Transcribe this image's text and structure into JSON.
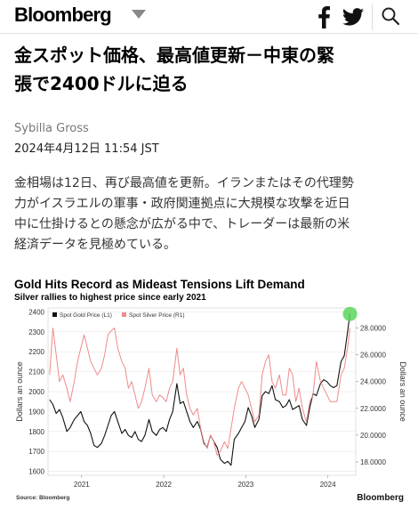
{
  "header": {
    "logo": "Bloomberg",
    "icons": [
      "facebook-icon",
      "twitter-icon",
      "search-icon"
    ]
  },
  "article": {
    "headline_line1": "金スポット価格、最高値更新－中東の緊",
    "headline_line2": "張で2400ドルに迫る",
    "author": "Sybilla Gross",
    "date": "2024年4月12日 11:54 JST",
    "paragraph_line1": "金相場は12日、再び最高値を更新。イランまたはその代理勢",
    "paragraph_line2": "力がイスラエルの軍事・政府関連拠点に大規模な攻撃を近日",
    "paragraph_line3": "中に仕掛けるとの懸念が広がる中で、トレーダーは最新の米",
    "paragraph_line4": "経済データを見極めている。"
  },
  "chart_data": {
    "type": "line",
    "title": "Gold Hits Record as Mideast Tensions Lift Demand",
    "subtitle": "Silver rallies to highest price since early 2021",
    "source": "Source: Bloomberg",
    "brand": "Bloomberg",
    "legend_placement": "top-left",
    "ylabel_left": "Dollars an ounce",
    "ylabel_right": "Dollars an ounce",
    "y_left_ticks": [
      "2400",
      "2300",
      "2200",
      "2100",
      "2000",
      "1900",
      "1800",
      "1700",
      "1600"
    ],
    "y_right_ticks": [
      "28.0000",
      "26.0000",
      "24.0000",
      "22.0000",
      "20.0000",
      "18.0000"
    ],
    "x_ticks": [
      "2021",
      "2022",
      "2023",
      "2024"
    ],
    "ylim_left": [
      1580,
      2420
    ],
    "ylim_right": [
      17,
      29.5
    ],
    "xlim": [
      2020.6,
      2024.35
    ],
    "highlight_color": "#5cd65c",
    "series": [
      {
        "name": "Spot Gold Price (L1)",
        "color": "#111111",
        "points": [
          [
            2020.62,
            1960
          ],
          [
            2020.66,
            1935
          ],
          [
            2020.7,
            1890
          ],
          [
            2020.74,
            1910
          ],
          [
            2020.78,
            1870
          ],
          [
            2020.83,
            1800
          ],
          [
            2020.87,
            1820
          ],
          [
            2020.92,
            1860
          ],
          [
            2020.96,
            1880
          ],
          [
            2021.0,
            1900
          ],
          [
            2021.04,
            1850
          ],
          [
            2021.08,
            1830
          ],
          [
            2021.12,
            1790
          ],
          [
            2021.16,
            1730
          ],
          [
            2021.2,
            1720
          ],
          [
            2021.25,
            1740
          ],
          [
            2021.29,
            1780
          ],
          [
            2021.33,
            1830
          ],
          [
            2021.37,
            1880
          ],
          [
            2021.41,
            1900
          ],
          [
            2021.45,
            1850
          ],
          [
            2021.5,
            1790
          ],
          [
            2021.54,
            1810
          ],
          [
            2021.58,
            1780
          ],
          [
            2021.62,
            1770
          ],
          [
            2021.66,
            1800
          ],
          [
            2021.7,
            1760
          ],
          [
            2021.74,
            1750
          ],
          [
            2021.78,
            1780
          ],
          [
            2021.83,
            1860
          ],
          [
            2021.87,
            1800
          ],
          [
            2021.92,
            1780
          ],
          [
            2021.96,
            1810
          ],
          [
            2022.0,
            1820
          ],
          [
            2022.04,
            1800
          ],
          [
            2022.08,
            1860
          ],
          [
            2022.12,
            1900
          ],
          [
            2022.17,
            2040
          ],
          [
            2022.21,
            1940
          ],
          [
            2022.25,
            1950
          ],
          [
            2022.29,
            1900
          ],
          [
            2022.33,
            1850
          ],
          [
            2022.37,
            1820
          ],
          [
            2022.42,
            1850
          ],
          [
            2022.46,
            1810
          ],
          [
            2022.5,
            1740
          ],
          [
            2022.54,
            1720
          ],
          [
            2022.58,
            1780
          ],
          [
            2022.62,
            1750
          ],
          [
            2022.66,
            1720
          ],
          [
            2022.7,
            1660
          ],
          [
            2022.75,
            1640
          ],
          [
            2022.79,
            1650
          ],
          [
            2022.83,
            1630
          ],
          [
            2022.87,
            1760
          ],
          [
            2022.92,
            1790
          ],
          [
            2022.96,
            1820
          ],
          [
            2023.0,
            1850
          ],
          [
            2023.04,
            1920
          ],
          [
            2023.08,
            1880
          ],
          [
            2023.12,
            1820
          ],
          [
            2023.17,
            1860
          ],
          [
            2023.21,
            1980
          ],
          [
            2023.25,
            2000
          ],
          [
            2023.29,
            1990
          ],
          [
            2023.33,
            2030
          ],
          [
            2023.37,
            1960
          ],
          [
            2023.42,
            1950
          ],
          [
            2023.46,
            1920
          ],
          [
            2023.5,
            1930
          ],
          [
            2023.54,
            1960
          ],
          [
            2023.58,
            1910
          ],
          [
            2023.62,
            1920
          ],
          [
            2023.66,
            1930
          ],
          [
            2023.7,
            1860
          ],
          [
            2023.75,
            1830
          ],
          [
            2023.79,
            1920
          ],
          [
            2023.83,
            1990
          ],
          [
            2023.87,
            1980
          ],
          [
            2023.92,
            2040
          ],
          [
            2023.96,
            2060
          ],
          [
            2024.0,
            2050
          ],
          [
            2024.04,
            2030
          ],
          [
            2024.08,
            2020
          ],
          [
            2024.12,
            2030
          ],
          [
            2024.17,
            2150
          ],
          [
            2024.21,
            2180
          ],
          [
            2024.25,
            2300
          ],
          [
            2024.28,
            2390
          ]
        ]
      },
      {
        "name": "Spot Silver Price (R1)",
        "color": "#f08a8a",
        "points": [
          [
            2020.62,
            24.5
          ],
          [
            2020.66,
            28.0
          ],
          [
            2020.7,
            26.0
          ],
          [
            2020.74,
            24.0
          ],
          [
            2020.78,
            24.5
          ],
          [
            2020.83,
            23.5
          ],
          [
            2020.87,
            22.5
          ],
          [
            2020.92,
            24.0
          ],
          [
            2020.96,
            25.5
          ],
          [
            2021.0,
            26.5
          ],
          [
            2021.04,
            27.5
          ],
          [
            2021.08,
            26.5
          ],
          [
            2021.12,
            25.5
          ],
          [
            2021.16,
            25.0
          ],
          [
            2021.2,
            24.5
          ],
          [
            2021.25,
            25.0
          ],
          [
            2021.29,
            26.0
          ],
          [
            2021.33,
            27.5
          ],
          [
            2021.37,
            27.8
          ],
          [
            2021.41,
            28.0
          ],
          [
            2021.45,
            26.5
          ],
          [
            2021.5,
            25.5
          ],
          [
            2021.54,
            25.0
          ],
          [
            2021.58,
            23.5
          ],
          [
            2021.62,
            24.0
          ],
          [
            2021.66,
            23.0
          ],
          [
            2021.7,
            22.0
          ],
          [
            2021.74,
            22.5
          ],
          [
            2021.78,
            23.5
          ],
          [
            2021.83,
            25.0
          ],
          [
            2021.87,
            23.0
          ],
          [
            2021.92,
            22.5
          ],
          [
            2021.96,
            23.0
          ],
          [
            2022.0,
            22.8
          ],
          [
            2022.04,
            22.5
          ],
          [
            2022.08,
            23.5
          ],
          [
            2022.12,
            24.0
          ],
          [
            2022.17,
            26.5
          ],
          [
            2022.21,
            24.5
          ],
          [
            2022.25,
            25.0
          ],
          [
            2022.29,
            23.0
          ],
          [
            2022.33,
            22.0
          ],
          [
            2022.37,
            21.5
          ],
          [
            2022.42,
            22.0
          ],
          [
            2022.46,
            20.5
          ],
          [
            2022.5,
            19.5
          ],
          [
            2022.54,
            19.0
          ],
          [
            2022.58,
            20.0
          ],
          [
            2022.62,
            19.5
          ],
          [
            2022.66,
            18.5
          ],
          [
            2022.7,
            18.8
          ],
          [
            2022.75,
            19.5
          ],
          [
            2022.79,
            19.0
          ],
          [
            2022.83,
            20.5
          ],
          [
            2022.87,
            22.0
          ],
          [
            2022.92,
            23.5
          ],
          [
            2022.96,
            24.0
          ],
          [
            2023.0,
            23.5
          ],
          [
            2023.04,
            23.0
          ],
          [
            2023.08,
            22.0
          ],
          [
            2023.12,
            21.0
          ],
          [
            2023.17,
            21.5
          ],
          [
            2023.21,
            24.5
          ],
          [
            2023.25,
            25.5
          ],
          [
            2023.29,
            26.0
          ],
          [
            2023.33,
            24.0
          ],
          [
            2023.37,
            23.5
          ],
          [
            2023.42,
            24.5
          ],
          [
            2023.46,
            23.0
          ],
          [
            2023.5,
            23.0
          ],
          [
            2023.54,
            25.0
          ],
          [
            2023.58,
            24.5
          ],
          [
            2023.62,
            22.5
          ],
          [
            2023.66,
            23.5
          ],
          [
            2023.7,
            22.0
          ],
          [
            2023.75,
            21.0
          ],
          [
            2023.79,
            22.5
          ],
          [
            2023.83,
            23.0
          ],
          [
            2023.87,
            25.5
          ],
          [
            2023.92,
            24.0
          ],
          [
            2023.96,
            23.5
          ],
          [
            2024.0,
            23.0
          ],
          [
            2024.04,
            22.5
          ],
          [
            2024.08,
            22.5
          ],
          [
            2024.12,
            22.5
          ],
          [
            2024.17,
            24.5
          ],
          [
            2024.21,
            25.0
          ],
          [
            2024.25,
            26.5
          ],
          [
            2024.28,
            28.0
          ]
        ]
      }
    ]
  }
}
